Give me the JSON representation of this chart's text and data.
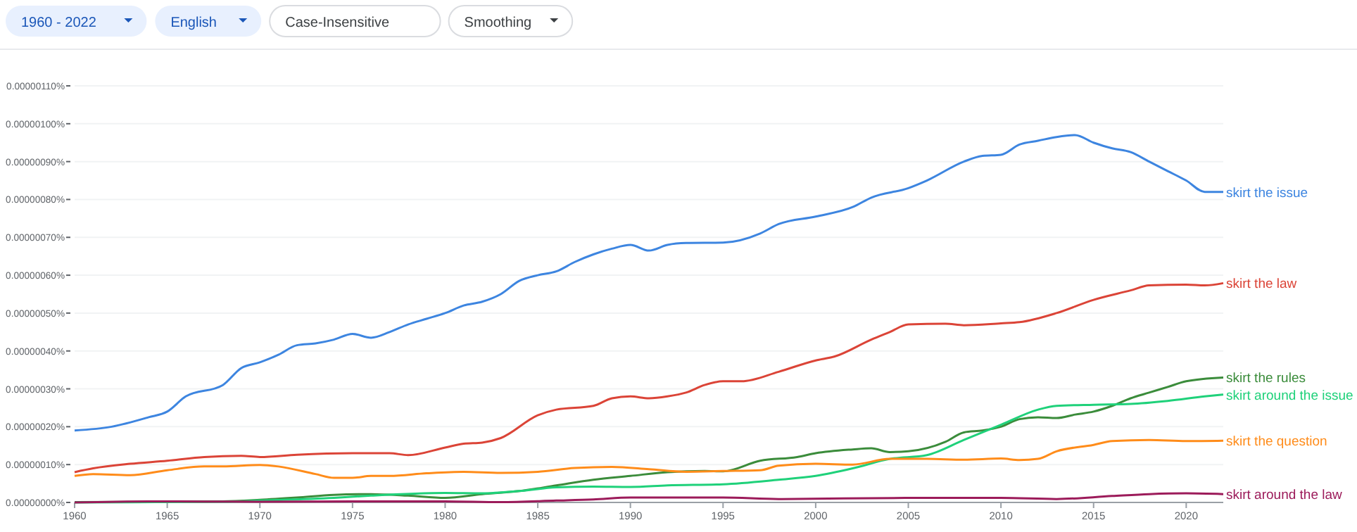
{
  "chart_data": {
    "type": "line",
    "annotations": [
      "1960 - 2022",
      "English",
      "Case-Insensitive",
      "Smoothing"
    ],
    "xlim": [
      1960,
      2022
    ],
    "xticks": [
      1960,
      1965,
      1970,
      1975,
      1980,
      1985,
      1990,
      1995,
      2000,
      2005,
      2010,
      2015,
      2020
    ],
    "ylim": [
      0,
      1.1e-06
    ],
    "yticks": [
      {
        "value": 0,
        "label": "0.00000000%"
      },
      {
        "value": 1e-07,
        "label": "0.00000010%"
      },
      {
        "value": 2e-07,
        "label": "0.00000020%"
      },
      {
        "value": 3e-07,
        "label": "0.00000030%"
      },
      {
        "value": 4e-07,
        "label": "0.00000040%"
      },
      {
        "value": 5e-07,
        "label": "0.00000050%"
      },
      {
        "value": 6e-07,
        "label": "0.00000060%"
      },
      {
        "value": 7e-07,
        "label": "0.00000070%"
      },
      {
        "value": 8e-07,
        "label": "0.00000080%"
      },
      {
        "value": 9e-07,
        "label": "0.00000090%"
      },
      {
        "value": 1e-06,
        "label": "0.00000100%"
      },
      {
        "value": 1.1e-06,
        "label": "0.00000110%"
      }
    ],
    "grid": "y",
    "legend": false,
    "marker": "none",
    "line_style": "solid",
    "series": [
      {
        "name": "skirt the issue",
        "color": "#3d85e0",
        "x": [
          1960,
          1962,
          1964,
          1965,
          1966,
          1968,
          1969,
          1970,
          1971,
          1972,
          1973,
          1974,
          1975,
          1976,
          1977,
          1978,
          1979,
          1980,
          1981,
          1982,
          1983,
          1984,
          1985,
          1986,
          1987,
          1988,
          1989,
          1990,
          1991,
          1992,
          1993,
          1995,
          1997,
          1998,
          2000,
          2002,
          2003,
          2005,
          2006,
          2008,
          2009,
          2010,
          2011,
          2012,
          2013,
          2014,
          2015,
          2016,
          2017,
          2018,
          2019,
          2020,
          2021,
          2022
        ],
        "values": [
          1.9e-07,
          2e-07,
          2.25e-07,
          2.4e-07,
          2.8e-07,
          3.1e-07,
          3.55e-07,
          3.7e-07,
          3.9e-07,
          4.15e-07,
          4.2e-07,
          4.3e-07,
          4.45e-07,
          4.35e-07,
          4.5e-07,
          4.7e-07,
          4.85e-07,
          5e-07,
          5.2e-07,
          5.3e-07,
          5.5e-07,
          5.85e-07,
          6e-07,
          6.1e-07,
          6.35e-07,
          6.55e-07,
          6.7e-07,
          6.8e-07,
          6.65e-07,
          6.8e-07,
          6.85e-07,
          6.86e-07,
          7.1e-07,
          7.35e-07,
          7.55e-07,
          7.8e-07,
          8.05e-07,
          8.3e-07,
          8.5e-07,
          9e-07,
          9.15e-07,
          9.18e-07,
          9.45e-07,
          9.55e-07,
          9.65e-07,
          9.7e-07,
          9.5e-07,
          9.35e-07,
          9.25e-07,
          9e-07,
          8.75e-07,
          8.5e-07,
          8.2e-07,
          8.2e-07
        ]
      },
      {
        "name": "skirt the law",
        "color": "#db4437",
        "x": [
          1960,
          1961,
          1963,
          1965,
          1967,
          1969,
          1970,
          1972,
          1975,
          1977,
          1978,
          1980,
          1981,
          1982,
          1983,
          1985,
          1986,
          1988,
          1989,
          1990,
          1991,
          1992,
          1993,
          1994,
          1995,
          1996,
          1998,
          2000,
          2001,
          2003,
          2004,
          2005,
          2007,
          2008,
          2010,
          2011,
          2013,
          2015,
          2017,
          2018,
          2020,
          2021,
          2022
        ],
        "values": [
          8e-08,
          9e-08,
          1.02e-07,
          1.1e-07,
          1.2e-07,
          1.23e-07,
          1.2e-07,
          1.26e-07,
          1.3e-07,
          1.3e-07,
          1.25e-07,
          1.45e-07,
          1.55e-07,
          1.58e-07,
          1.7e-07,
          2.3e-07,
          2.45e-07,
          2.55e-07,
          2.75e-07,
          2.8e-07,
          2.75e-07,
          2.8e-07,
          2.9e-07,
          3.1e-07,
          3.2e-07,
          3.2e-07,
          3.45e-07,
          3.75e-07,
          3.85e-07,
          4.3e-07,
          4.5e-07,
          4.7e-07,
          4.72e-07,
          4.68e-07,
          4.73e-07,
          4.76e-07,
          5e-07,
          5.35e-07,
          5.6e-07,
          5.73e-07,
          5.75e-07,
          5.73e-07,
          5.79e-07
        ]
      },
      {
        "name": "skirt the rules",
        "color": "#3b8c3b",
        "x": [
          1960,
          1968,
          1970,
          1972,
          1974,
          1976,
          1978,
          1980,
          1982,
          1984,
          1986,
          1988,
          1990,
          1992,
          1994,
          1995,
          1997,
          1999,
          2000,
          2002,
          2003,
          2004,
          2005,
          2007,
          2008,
          2009,
          2010,
          2011,
          2012,
          2013,
          2014,
          2015,
          2016,
          2017,
          2018,
          2019,
          2020,
          2022
        ],
        "values": [
          1e-09,
          3e-09,
          7e-09,
          1.3e-08,
          2e-08,
          2.2e-08,
          1.8e-08,
          1.2e-08,
          2.2e-08,
          3e-08,
          4.5e-08,
          6e-08,
          7e-08,
          8e-08,
          8.3e-08,
          8.2e-08,
          1.1e-07,
          1.2e-07,
          1.3e-07,
          1.4e-07,
          1.43e-07,
          1.33e-07,
          1.35e-07,
          1.6e-07,
          1.85e-07,
          1.9e-07,
          2e-07,
          2.2e-07,
          2.25e-07,
          2.23e-07,
          2.32e-07,
          2.4e-07,
          2.55e-07,
          2.75e-07,
          2.9e-07,
          3.05e-07,
          3.2e-07,
          3.3e-07
        ]
      },
      {
        "name": "skirt around the issue",
        "color": "#1fd17a",
        "x": [
          1960,
          1968,
          1970,
          1974,
          1976,
          1980,
          1982,
          1984,
          1986,
          1988,
          1990,
          1992,
          1995,
          1998,
          2000,
          2002,
          2004,
          2006,
          2008,
          2010,
          2012,
          2013,
          2015,
          2017,
          2019,
          2021,
          2022
        ],
        "values": [
          0,
          2e-09,
          5e-09,
          1.2e-08,
          1.8e-08,
          2.5e-08,
          2.4e-08,
          3e-08,
          4e-08,
          4.2e-08,
          4.1e-08,
          4.5e-08,
          4.8e-08,
          6e-08,
          7e-08,
          9e-08,
          1.15e-07,
          1.25e-07,
          1.65e-07,
          2.05e-07,
          2.45e-07,
          2.55e-07,
          2.58e-07,
          2.6e-07,
          2.68e-07,
          2.8e-07,
          2.85e-07
        ]
      },
      {
        "name": "skirt the question",
        "color": "#ff8c1a",
        "x": [
          1960,
          1961,
          1963,
          1965,
          1967,
          1968,
          1970,
          1971,
          1973,
          1974,
          1975,
          1976,
          1977,
          1979,
          1981,
          1983,
          1985,
          1987,
          1989,
          1991,
          1993,
          1995,
          1997,
          1998,
          2000,
          2002,
          2004,
          2006,
          2008,
          2010,
          2011,
          2012,
          2013,
          2015,
          2016,
          2018,
          2020,
          2022
        ],
        "values": [
          7e-08,
          7.5e-08,
          7.2e-08,
          8.5e-08,
          9.5e-08,
          9.5e-08,
          9.9e-08,
          9.5e-08,
          7.5e-08,
          6.5e-08,
          6.5e-08,
          7e-08,
          7e-08,
          7.7e-08,
          8.1e-08,
          7.8e-08,
          8.1e-08,
          9.1e-08,
          9.4e-08,
          8.8e-08,
          8.1e-08,
          8.3e-08,
          8.5e-08,
          9.7e-08,
          1.02e-07,
          1e-07,
          1.15e-07,
          1.15e-07,
          1.13e-07,
          1.16e-07,
          1.12e-07,
          1.15e-07,
          1.35e-07,
          1.52e-07,
          1.62e-07,
          1.65e-07,
          1.62e-07,
          1.63e-07
        ]
      },
      {
        "name": "skirt around the law",
        "color": "#9c1b5a",
        "x": [
          1960,
          1964,
          1970,
          1975,
          1980,
          1983,
          1986,
          1988,
          1990,
          1995,
          1998,
          2005,
          2010,
          2013,
          2016,
          2018,
          2020,
          2022
        ],
        "values": [
          0,
          3e-09,
          2e-09,
          3e-09,
          3e-09,
          1e-09,
          5e-09,
          8e-09,
          1.3e-08,
          1.3e-08,
          9e-09,
          1.2e-08,
          1.2e-08,
          9e-09,
          1.7e-08,
          2.2e-08,
          2.4e-08,
          2.2e-08
        ]
      }
    ]
  }
}
